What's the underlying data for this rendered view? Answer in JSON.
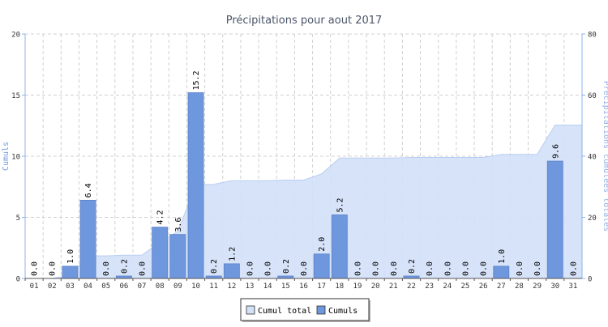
{
  "chart_data": {
    "type": "bar",
    "title": "Précipitations pour aout 2017",
    "ylabel": "Cumuls",
    "y2label": "Précipitations cumulées totales",
    "ylim": [
      0,
      20
    ],
    "y2lim": [
      0,
      80
    ],
    "yticks": [
      "0",
      "5",
      "10",
      "15",
      "20"
    ],
    "y2ticks": [
      "0",
      "20",
      "40",
      "60",
      "80"
    ],
    "grid": true,
    "legend_position": "bottom-center",
    "categories": [
      "01",
      "02",
      "03",
      "04",
      "05",
      "06",
      "07",
      "08",
      "09",
      "10",
      "11",
      "12",
      "13",
      "14",
      "15",
      "16",
      "17",
      "18",
      "19",
      "20",
      "21",
      "22",
      "23",
      "24",
      "25",
      "26",
      "27",
      "28",
      "29",
      "30",
      "31"
    ],
    "series": [
      {
        "name": "Cumul total",
        "type": "area",
        "axis": "right",
        "color": "#d3e0f8",
        "values": [
          0.0,
          0.0,
          1.0,
          7.4,
          7.4,
          7.6,
          7.6,
          11.8,
          15.4,
          30.6,
          30.8,
          32.0,
          32.0,
          32.0,
          32.2,
          32.2,
          34.2,
          39.4,
          39.4,
          39.4,
          39.4,
          39.6,
          39.6,
          39.6,
          39.6,
          39.6,
          40.6,
          40.6,
          40.6,
          50.2,
          50.2
        ]
      },
      {
        "name": "Cumuls",
        "type": "bar",
        "axis": "left",
        "color": "#6f97de",
        "values": [
          0.0,
          0.0,
          1.0,
          6.4,
          0.0,
          0.2,
          0.0,
          4.2,
          3.6,
          15.2,
          0.2,
          1.2,
          0.0,
          0.0,
          0.2,
          0.0,
          2.0,
          5.2,
          0.0,
          0.0,
          0.0,
          0.2,
          0.0,
          0.0,
          0.0,
          0.0,
          1.0,
          0.0,
          0.0,
          9.6,
          0.0
        ]
      }
    ]
  }
}
